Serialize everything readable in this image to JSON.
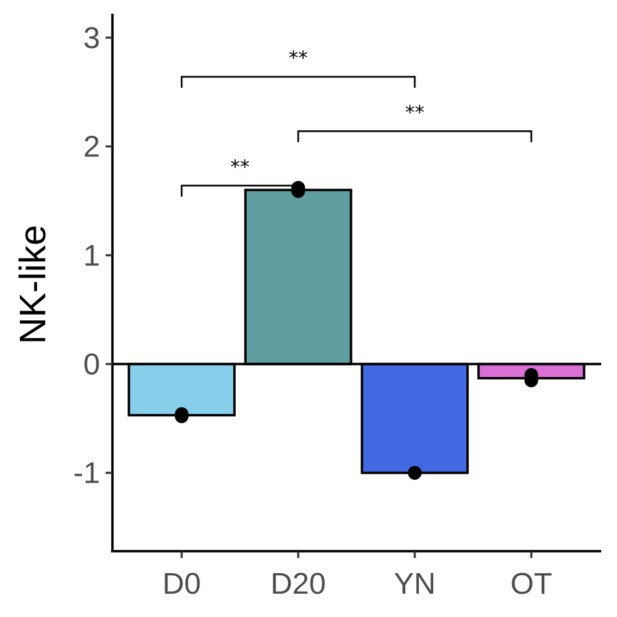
{
  "chart_data": {
    "type": "bar",
    "categories": [
      "D0",
      "D20",
      "YN",
      "OT"
    ],
    "values": [
      -0.47,
      1.6,
      -1.0,
      -0.13
    ],
    "points": [
      [
        -0.46,
        -0.48
      ],
      [
        1.62,
        1.59
      ],
      [
        -1.0,
        -1.0
      ],
      [
        -0.1,
        -0.15
      ]
    ],
    "colors": [
      "#87CEEB",
      "#5F9EA0",
      "#4169E1",
      "#DA70D6"
    ],
    "ylabel": "NK-like",
    "xlabel": "",
    "ylim": [
      -1.72,
      3.22
    ],
    "yticks": [
      -1,
      0,
      1,
      2,
      3
    ],
    "ytick_labels": [
      "-1",
      "0",
      "1",
      "2",
      "3"
    ],
    "zero_line": true,
    "comparisons": [
      {
        "from": "D0",
        "to": "D20",
        "label": "**",
        "y": 1.64
      },
      {
        "from": "D0",
        "to": "YN",
        "label": "**",
        "y": 2.64
      },
      {
        "from": "D20",
        "to": "OT",
        "label": "**",
        "y": 2.14
      }
    ]
  }
}
